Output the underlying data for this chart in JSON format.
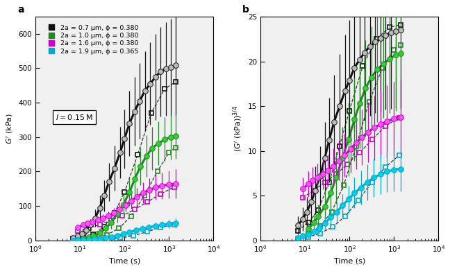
{
  "panel_a": {
    "title": "a",
    "xlabel": "Time (s)",
    "ylabel_latex": "$G'$ (kPa)",
    "xlim": [
      1.0,
      10000.0
    ],
    "ylim": [
      0,
      650
    ],
    "yticks": [
      0,
      100,
      200,
      300,
      400,
      500,
      600
    ],
    "annotation": "$I = 0.15$ M",
    "series": [
      {
        "label": "2a = 0.7 μm, ϕ = 0.380",
        "line_color": "#111111",
        "marker_color": "#bbbbbb",
        "sq_color": "#111111",
        "solid_times": [
          7,
          9,
          11,
          14,
          17,
          22,
          28,
          35,
          45,
          60,
          80,
          100,
          130,
          170,
          220,
          290,
          380,
          500,
          650,
          850,
          1100,
          1400
        ],
        "solid_vals": [
          8,
          13,
          20,
          30,
          45,
          65,
          95,
          130,
          170,
          210,
          255,
          295,
          340,
          375,
          405,
          435,
          455,
          475,
          490,
          498,
          503,
          508
        ],
        "solid_errs": [
          4,
          6,
          9,
          13,
          18,
          25,
          35,
          45,
          55,
          65,
          75,
          85,
          95,
          100,
          110,
          115,
          120,
          125,
          130,
          135,
          140,
          145
        ],
        "dashed_times": [
          7,
          12,
          20,
          35,
          60,
          100,
          200,
          400,
          800,
          1400
        ],
        "dashed_vals": [
          5,
          10,
          18,
          40,
          80,
          140,
          250,
          370,
          440,
          460
        ]
      },
      {
        "label": "2a = 1.0 μm, ϕ = 0.380",
        "line_color": "#228822",
        "marker_color": "#33cc33",
        "sq_color": "#228822",
        "solid_times": [
          12,
          16,
          20,
          28,
          38,
          50,
          70,
          95,
          130,
          170,
          230,
          310,
          420,
          580,
          800,
          1100,
          1400
        ],
        "solid_vals": [
          5,
          9,
          14,
          22,
          35,
          52,
          78,
          105,
          140,
          178,
          215,
          245,
          268,
          282,
          293,
          300,
          303
        ],
        "solid_errs": [
          3,
          4,
          6,
          9,
          13,
          18,
          25,
          32,
          40,
          48,
          55,
          60,
          62,
          63,
          64,
          65,
          66
        ],
        "dashed_times": [
          12,
          22,
          40,
          75,
          140,
          280,
          550,
          1000,
          1400
        ],
        "dashed_vals": [
          3,
          7,
          16,
          35,
          70,
          130,
          200,
          255,
          270
        ]
      },
      {
        "label": "2a = 1.6 μm, ϕ = 0.380",
        "line_color": "#cc00cc",
        "marker_color": "#ff55ff",
        "sq_color": "#cc00cc",
        "solid_times": [
          9,
          12,
          15,
          19,
          25,
          33,
          44,
          58,
          77,
          105,
          140,
          190,
          260,
          360,
          500,
          700,
          980,
          1400
        ],
        "solid_vals": [
          38,
          45,
          50,
          55,
          60,
          65,
          72,
          80,
          90,
          103,
          115,
          127,
          138,
          147,
          154,
          159,
          162,
          165
        ],
        "solid_errs": [
          6,
          8,
          8,
          9,
          10,
          11,
          12,
          14,
          16,
          18,
          22,
          26,
          30,
          33,
          36,
          38,
          40,
          42
        ],
        "dashed_times": [
          9,
          16,
          28,
          50,
          90,
          170,
          330,
          650,
          1300
        ],
        "dashed_vals": [
          28,
          36,
          46,
          58,
          72,
          90,
          112,
          135,
          155
        ]
      },
      {
        "label": "2a = 1.9 μm, ϕ = 0.365",
        "line_color": "#00aacc",
        "marker_color": "#00ccee",
        "sq_color": "#00aacc",
        "solid_times": [
          7,
          9,
          12,
          16,
          21,
          28,
          38,
          52,
          70,
          95,
          130,
          180,
          250,
          350,
          500,
          700,
          1000,
          1400
        ],
        "solid_vals": [
          0.5,
          0.8,
          1.2,
          2.0,
          3.0,
          4.5,
          7.0,
          10,
          14,
          19,
          24,
          29,
          34,
          38,
          42,
          45,
          48,
          50
        ],
        "solid_errs": [
          0.3,
          0.4,
          0.6,
          0.9,
          1.2,
          1.8,
          2.5,
          3.5,
          5,
          6,
          7,
          8,
          9,
          10,
          11,
          12,
          13,
          14
        ],
        "dashed_times": [
          7,
          12,
          22,
          42,
          80,
          160,
          320,
          650,
          1300
        ],
        "dashed_vals": [
          0.3,
          0.7,
          1.5,
          3.5,
          7,
          14,
          25,
          38,
          46
        ]
      }
    ]
  },
  "panel_b": {
    "title": "b",
    "xlabel": "Time (s)",
    "ylabel_latex": "$(G'$ (kPa)$)^{3/4}$",
    "xlim": [
      1.0,
      10000.0
    ],
    "ylim": [
      0,
      25
    ],
    "yticks": [
      0,
      5,
      10,
      15,
      20,
      25
    ],
    "series": [
      {
        "line_color": "#111111",
        "marker_color": "#bbbbbb",
        "sq_color": "#111111",
        "solid_times": [
          7,
          9,
          11,
          14,
          17,
          22,
          28,
          35,
          45,
          60,
          80,
          100,
          130,
          170,
          220,
          290,
          380,
          500,
          650,
          850,
          1100,
          1400
        ],
        "solid_vals": [
          1.7,
          2.4,
          3.2,
          4.3,
          5.6,
          7.2,
          9.2,
          11.2,
          13.2,
          15.0,
          16.7,
          17.9,
          19.3,
          20.2,
          21.0,
          21.7,
          22.2,
          22.6,
          22.9,
          23.2,
          23.4,
          23.5
        ],
        "solid_errs": [
          1.0,
          1.3,
          1.7,
          2.2,
          2.7,
          3.3,
          4.0,
          4.7,
          5.3,
          5.8,
          6.3,
          6.7,
          7.1,
          7.4,
          7.6,
          7.8,
          8.0,
          8.2,
          8.3,
          8.5,
          8.6,
          8.7
        ],
        "dashed_times": [
          7,
          12,
          20,
          35,
          60,
          100,
          200,
          400,
          800,
          1400
        ],
        "dashed_vals": [
          1.1,
          2.0,
          3.4,
          6.5,
          10.5,
          14.5,
          19.5,
          22.5,
          23.8,
          24.1
        ]
      },
      {
        "line_color": "#228822",
        "marker_color": "#33cc33",
        "sq_color": "#228822",
        "solid_times": [
          12,
          16,
          20,
          28,
          38,
          50,
          70,
          95,
          130,
          170,
          230,
          310,
          420,
          580,
          800,
          1100,
          1400
        ],
        "solid_vals": [
          1.3,
          2.0,
          2.7,
          3.8,
          5.3,
          7.0,
          9.2,
          11.3,
          13.5,
          15.3,
          17.0,
          18.2,
          19.1,
          19.7,
          20.3,
          20.7,
          20.9
        ],
        "solid_errs": [
          0.7,
          1.0,
          1.3,
          1.8,
          2.3,
          2.9,
          3.5,
          4.1,
          4.6,
          5.0,
          5.4,
          5.7,
          5.9,
          6.0,
          6.1,
          6.2,
          6.3
        ],
        "dashed_times": [
          12,
          22,
          40,
          75,
          140,
          280,
          550,
          1000,
          1400
        ],
        "dashed_vals": [
          0.8,
          1.6,
          3.2,
          6.2,
          10.5,
          15.5,
          19.3,
          21.3,
          21.8
        ]
      },
      {
        "line_color": "#cc00cc",
        "marker_color": "#ff55ff",
        "sq_color": "#cc00cc",
        "solid_times": [
          9,
          12,
          15,
          19,
          25,
          33,
          44,
          58,
          77,
          105,
          140,
          190,
          260,
          360,
          500,
          700,
          980,
          1400
        ],
        "solid_vals": [
          5.8,
          6.3,
          6.7,
          7.0,
          7.4,
          7.8,
          8.3,
          8.9,
          9.5,
          10.2,
          10.9,
          11.5,
          12.1,
          12.6,
          13.0,
          13.3,
          13.6,
          13.8
        ],
        "solid_errs": [
          1.2,
          1.4,
          1.5,
          1.6,
          1.7,
          1.8,
          2.0,
          2.2,
          2.4,
          2.6,
          2.9,
          3.1,
          3.4,
          3.6,
          3.8,
          4.0,
          4.1,
          4.2
        ],
        "dashed_times": [
          9,
          16,
          28,
          50,
          90,
          170,
          330,
          650,
          1300
        ],
        "dashed_vals": [
          4.8,
          5.6,
          6.5,
          7.4,
          8.5,
          9.8,
          11.3,
          12.8,
          13.7
        ]
      },
      {
        "line_color": "#00aacc",
        "marker_color": "#00ccee",
        "sq_color": "#00aacc",
        "solid_times": [
          7,
          9,
          12,
          16,
          21,
          28,
          38,
          52,
          70,
          95,
          130,
          180,
          250,
          350,
          500,
          700,
          1000,
          1400
        ],
        "solid_vals": [
          0.3,
          0.5,
          0.7,
          1.0,
          1.4,
          1.9,
          2.6,
          3.2,
          3.9,
          4.6,
          5.3,
          5.9,
          6.5,
          7.0,
          7.4,
          7.7,
          7.9,
          8.0
        ],
        "solid_errs": [
          0.2,
          0.3,
          0.4,
          0.5,
          0.6,
          0.7,
          0.9,
          1.1,
          1.3,
          1.5,
          1.7,
          1.9,
          2.0,
          2.1,
          2.2,
          2.3,
          2.4,
          2.5
        ],
        "dashed_times": [
          7,
          12,
          22,
          42,
          80,
          160,
          320,
          650,
          1300
        ],
        "dashed_vals": [
          0.2,
          0.4,
          0.8,
          1.5,
          2.7,
          4.5,
          6.5,
          8.2,
          9.5
        ]
      }
    ]
  },
  "legend_labels": [
    "2a = 0.7 μm, ϕ = 0.380",
    "2a = 1.0 μm, ϕ = 0.380",
    "2a = 1.6 μm, ϕ = 0.380",
    "2a = 1.9 μm, ϕ = 0.365"
  ],
  "legend_sq_colors": [
    "#111111",
    "#228822",
    "#cc00cc",
    "#00aacc"
  ],
  "bg_color": "#f5f5f5"
}
